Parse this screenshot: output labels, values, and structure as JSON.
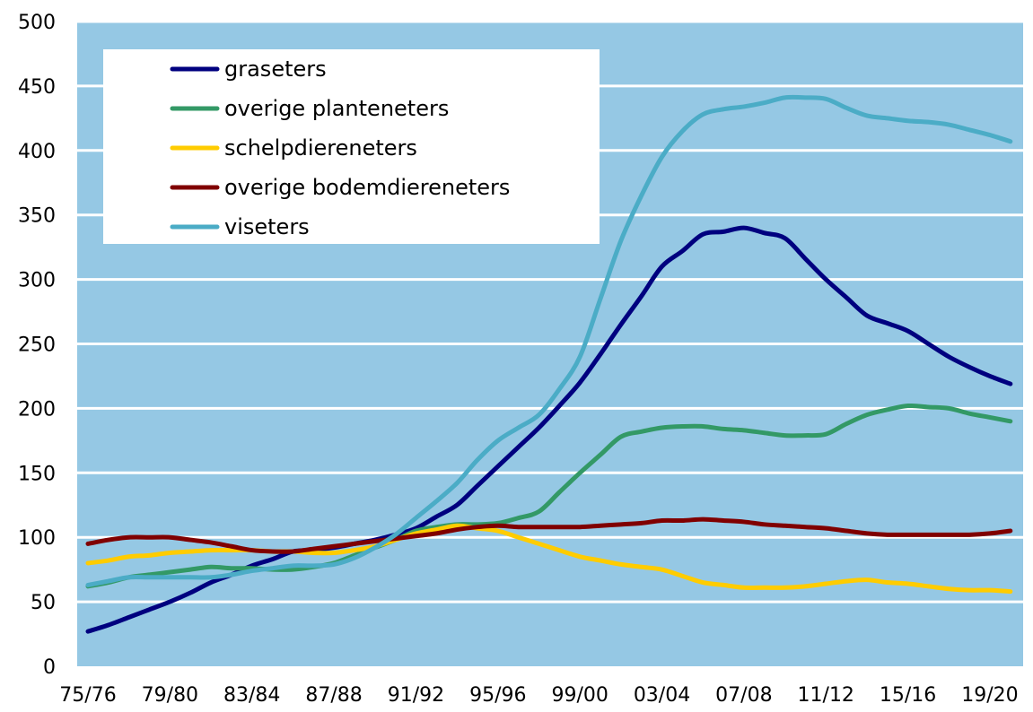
{
  "chart_data": {
    "type": "line",
    "title": "",
    "xlabel": "",
    "ylabel": "",
    "ylim": [
      0,
      500
    ],
    "yticks": [
      0,
      50,
      100,
      150,
      200,
      250,
      300,
      350,
      400,
      450,
      500
    ],
    "grid": "horizontal",
    "background": "#95c8e4",
    "legend_position": "top-left",
    "categories": [
      "75/76",
      "76/77",
      "77/78",
      "78/79",
      "79/80",
      "80/81",
      "81/82",
      "82/83",
      "83/84",
      "84/85",
      "85/86",
      "86/87",
      "87/88",
      "88/89",
      "89/90",
      "90/91",
      "91/92",
      "92/93",
      "93/94",
      "94/95",
      "95/96",
      "96/97",
      "97/98",
      "98/99",
      "99/00",
      "00/01",
      "01/02",
      "02/03",
      "03/04",
      "04/05",
      "05/06",
      "06/07",
      "07/08",
      "08/09",
      "09/10",
      "10/11",
      "11/12",
      "12/13",
      "13/14",
      "14/15",
      "15/16",
      "16/17",
      "17/18",
      "18/19",
      "19/20",
      "20/21"
    ],
    "xtick_labels": [
      "75/76",
      "79/80",
      "83/84",
      "87/88",
      "91/92",
      "95/96",
      "99/00",
      "03/04",
      "07/08",
      "11/12",
      "15/16",
      "19/20"
    ],
    "series": [
      {
        "name": "graseters",
        "color": "#00007f",
        "values": [
          27,
          32,
          38,
          44,
          50,
          57,
          65,
          71,
          78,
          83,
          89,
          90,
          92,
          95,
          98,
          102,
          107,
          116,
          125,
          140,
          155,
          170,
          185,
          202,
          220,
          242,
          265,
          287,
          310,
          322,
          335,
          337,
          340,
          336,
          332,
          316,
          300,
          286,
          272,
          266,
          260,
          250,
          240,
          232,
          225,
          219
        ]
      },
      {
        "name": "overige planteneters",
        "color": "#339966",
        "values": [
          62,
          65,
          69,
          71,
          73,
          75,
          77,
          76,
          76,
          75,
          75,
          77,
          80,
          86,
          92,
          98,
          105,
          108,
          110,
          110,
          111,
          115,
          120,
          135,
          150,
          164,
          178,
          182,
          185,
          186,
          186,
          184,
          183,
          181,
          179,
          179,
          180,
          188,
          195,
          199,
          202,
          201,
          200,
          196,
          193,
          190
        ]
      },
      {
        "name": "schelpdiereneters",
        "color": "#ffcc00",
        "values": [
          80,
          82,
          85,
          86,
          88,
          89,
          90,
          90,
          90,
          89,
          89,
          88,
          88,
          90,
          93,
          98,
          103,
          106,
          109,
          107,
          105,
          100,
          95,
          90,
          85,
          82,
          79,
          77,
          75,
          70,
          65,
          63,
          61,
          61,
          61,
          62,
          64,
          66,
          67,
          65,
          64,
          62,
          60,
          59,
          59,
          58
        ]
      },
      {
        "name": "overige bodemdiereneters",
        "color": "#800000",
        "values": [
          95,
          98,
          100,
          100,
          100,
          98,
          96,
          93,
          90,
          89,
          89,
          91,
          93,
          95,
          97,
          99,
          101,
          103,
          106,
          108,
          109,
          108,
          108,
          108,
          108,
          109,
          110,
          111,
          113,
          113,
          114,
          113,
          112,
          110,
          109,
          108,
          107,
          105,
          103,
          102,
          102,
          102,
          102,
          102,
          103,
          105
        ]
      },
      {
        "name": "viseters",
        "color": "#4bacc6",
        "values": [
          63,
          66,
          69,
          69,
          69,
          69,
          69,
          71,
          74,
          76,
          78,
          78,
          79,
          84,
          92,
          102,
          115,
          128,
          142,
          160,
          175,
          185,
          195,
          215,
          240,
          285,
          330,
          365,
          395,
          415,
          428,
          432,
          434,
          437,
          441,
          441,
          440,
          433,
          427,
          425,
          423,
          422,
          420,
          416,
          412,
          407
        ]
      }
    ]
  }
}
